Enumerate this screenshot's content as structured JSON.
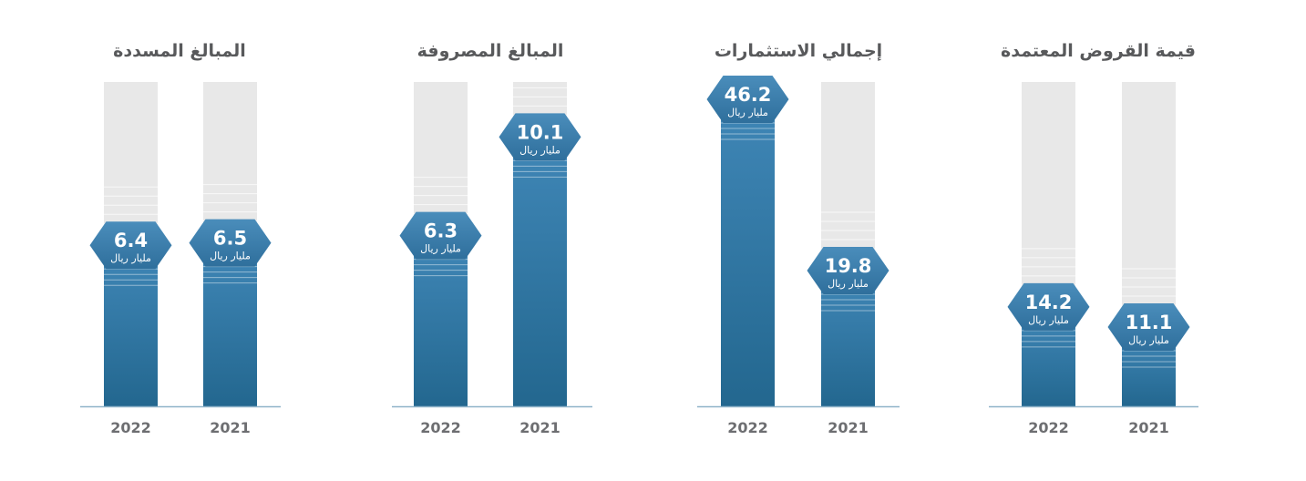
{
  "colors": {
    "bar_top": "#3f86b6",
    "bar_bottom": "#23678f",
    "track": "#e8e8e8",
    "baseline": "#8fb3c9",
    "badge": "#3d7fae",
    "text": "#58595b"
  },
  "chart_data": [
    {
      "type": "bar",
      "title": "قيمة القروض المعتمدة",
      "categories": [
        "2021",
        "2022"
      ],
      "values": [
        11.1,
        14.2
      ],
      "unit": "مليار ريال",
      "value_labels": [
        "11.1",
        "14.2"
      ],
      "ylim": [
        0,
        50
      ],
      "grid": false
    },
    {
      "type": "bar",
      "title": "إجمالي الاستثمارات",
      "categories": [
        "2021",
        "2022"
      ],
      "values": [
        19.8,
        46.2
      ],
      "unit": "مليار ريال",
      "value_labels": [
        "19.8",
        "46.2"
      ],
      "ylim": [
        0,
        50
      ],
      "grid": false
    },
    {
      "type": "bar",
      "title": "المبالغ المصروفة",
      "categories": [
        "2021",
        "2022"
      ],
      "values": [
        10.1,
        6.3
      ],
      "unit": "مليار ريال",
      "value_labels": [
        "10.1",
        "6.3"
      ],
      "ylim": [
        0,
        12.5
      ],
      "grid": false
    },
    {
      "type": "bar",
      "title": "المبالغ المسددة",
      "categories": [
        "2021",
        "2022"
      ],
      "values": [
        6.5,
        6.4
      ],
      "unit": "مليار ريال",
      "value_labels": [
        "6.5",
        "6.4"
      ],
      "ylim": [
        0,
        13.5
      ],
      "grid": false
    }
  ]
}
